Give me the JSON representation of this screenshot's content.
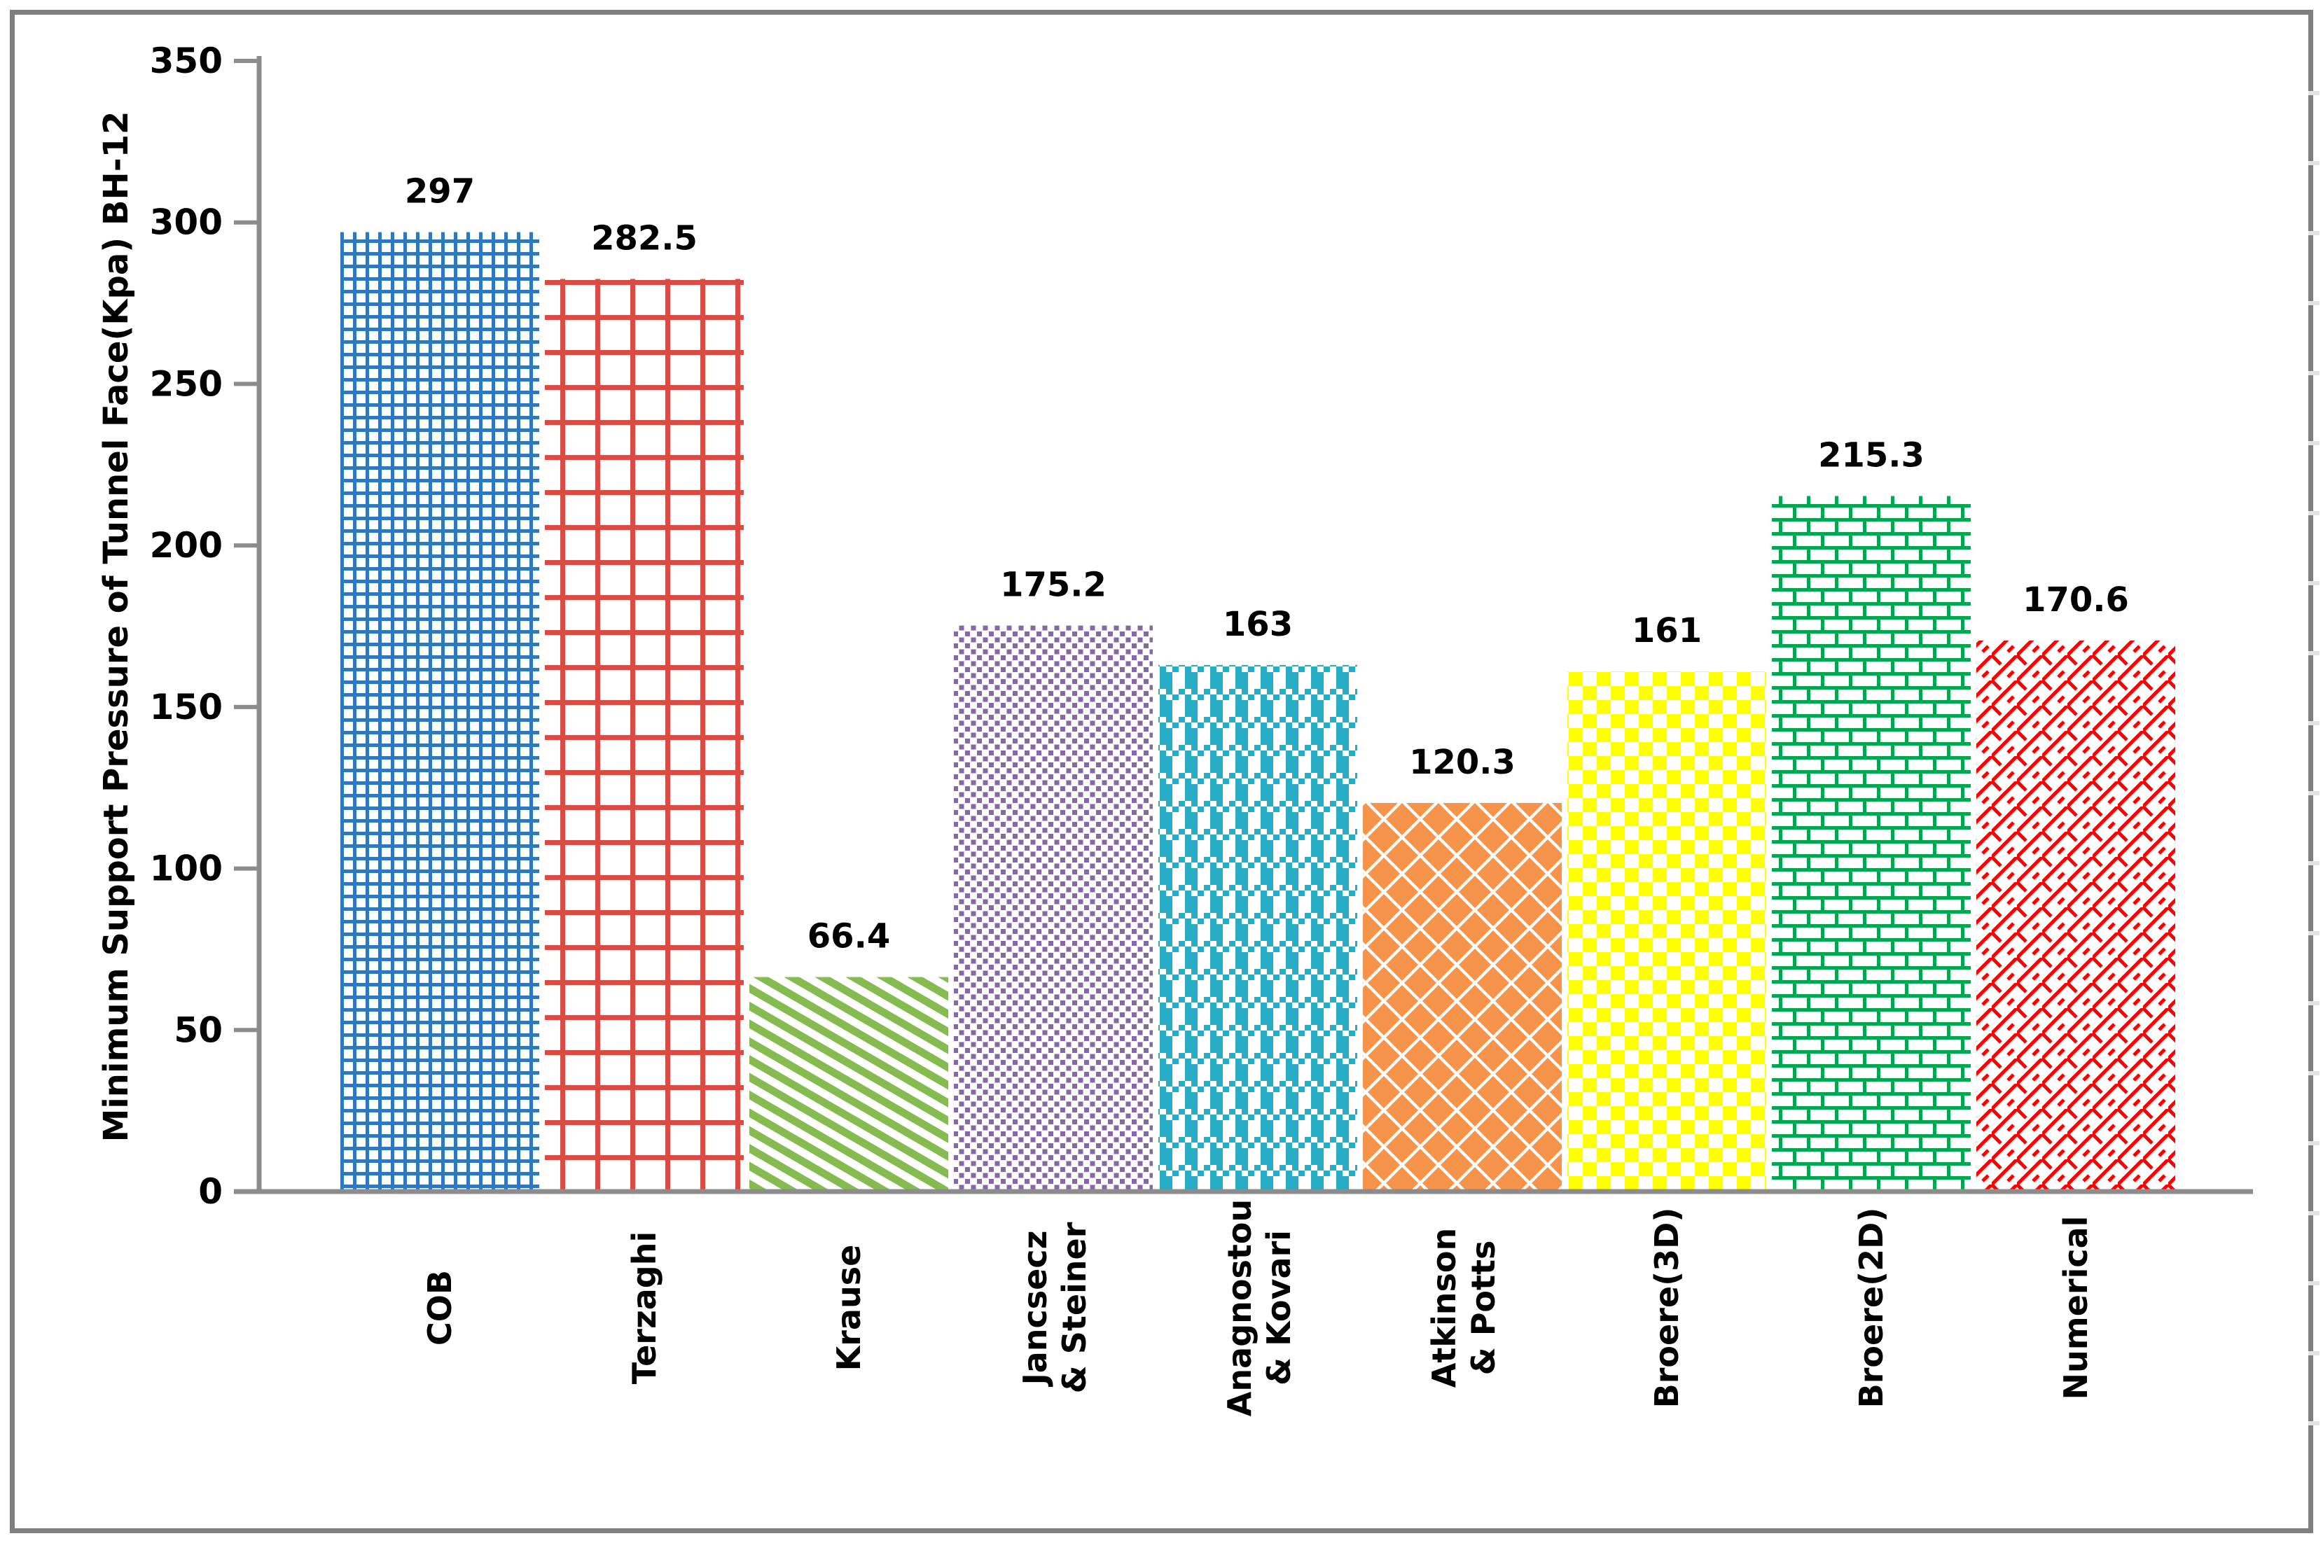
{
  "chart_data": {
    "type": "bar",
    "title": "",
    "ylabel": "Minimum Support Pressure of Tunnel Face(Kpa) BH-12",
    "xlabel": "",
    "ylim": [
      0,
      350
    ],
    "ytick_labels": [
      "0",
      "50",
      "100",
      "150",
      "200",
      "250",
      "300",
      "350"
    ],
    "grid": false,
    "legend": "none",
    "categories": [
      "COB",
      "Terzaghi",
      "Krause",
      "Jancsecz & Steiner",
      "Anagnostou & Kovari",
      "Atkinson & Potts",
      "Broere(3D)",
      "Broere(2D)",
      "Numerical"
    ],
    "category_lines": [
      [
        "COB"
      ],
      [
        "Terzaghi"
      ],
      [
        "Krause"
      ],
      [
        "Jancsecz",
        "& Steiner"
      ],
      [
        "Anagnostou",
        "& Kovari"
      ],
      [
        "Atkinson",
        "& Potts"
      ],
      [
        "Broere(3D)"
      ],
      [
        "Broere(2D)"
      ],
      [
        "Numerical"
      ]
    ],
    "values": [
      297,
      282.5,
      66.4,
      175.2,
      163,
      120.3,
      161,
      215.3,
      170.6
    ],
    "value_labels": [
      "297",
      "282.5",
      "66.4",
      "175.2",
      "163",
      "120.3",
      "161",
      "215.3",
      "170.6"
    ],
    "bar_styles": [
      {
        "color": "#2E79BD",
        "pattern": "small-grid"
      },
      {
        "color": "#DC4B43",
        "pattern": "large-grid"
      },
      {
        "color": "#85BB4F",
        "pattern": "diagonal-stripes"
      },
      {
        "color": "#8667A8",
        "pattern": "dots"
      },
      {
        "color": "#26ADC5",
        "pattern": "plaid"
      },
      {
        "color": "#F5944A",
        "pattern": "diamonds"
      },
      {
        "color": "#FFFF00",
        "pattern": "checkerboard"
      },
      {
        "color": "#00A651",
        "pattern": "brick"
      },
      {
        "color": "#FF0000",
        "pattern": "shingle"
      }
    ],
    "colors": {
      "text": "#000000",
      "axis": "#8C8C8C",
      "frame_border": "#7F7F7F",
      "background": "#FFFFFF",
      "artifact_tick": "#E3E3E3"
    }
  }
}
